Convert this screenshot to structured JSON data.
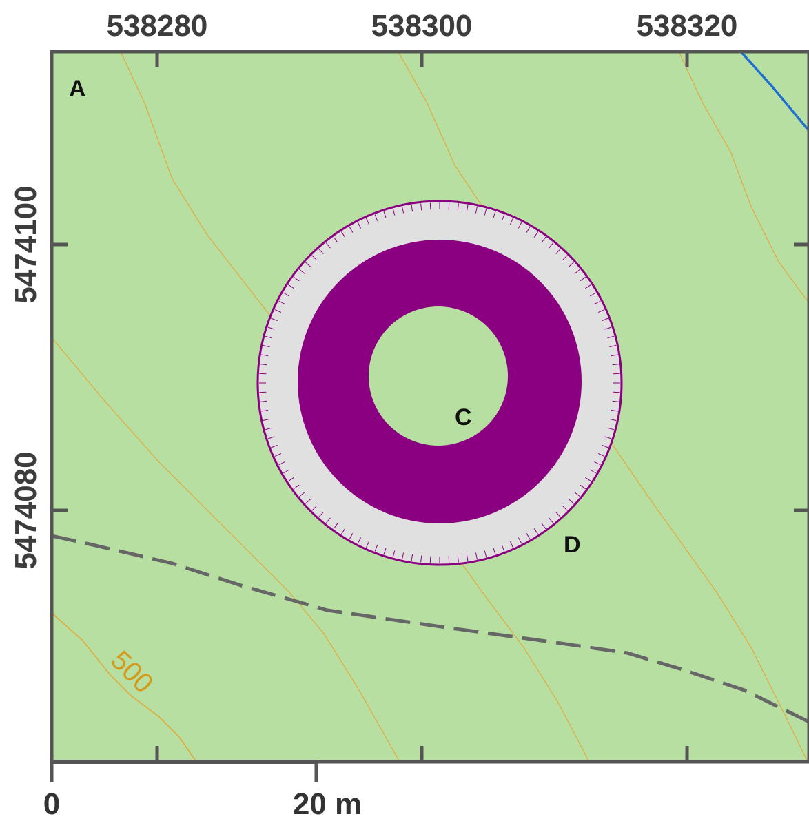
{
  "map": {
    "easting_labels": [
      "538280",
      "538300",
      "538320"
    ],
    "northing_labels": [
      "5474100",
      "5474080"
    ],
    "panel_letter": "A",
    "feature_labels": {
      "inner": "C",
      "outer": "D"
    },
    "contour_label": "500",
    "scale_bar": {
      "start_label": "0",
      "end_label": "20 m"
    },
    "colors": {
      "background": "#b7dfa2",
      "frame": "#555555",
      "ring_fill": "#8b0080",
      "ring_outline": "#8b0080",
      "rim_fill": "#e0e0e0",
      "contour": "#e3a83a",
      "dashed_line": "#666666",
      "stream": "#1f6fd1"
    }
  }
}
